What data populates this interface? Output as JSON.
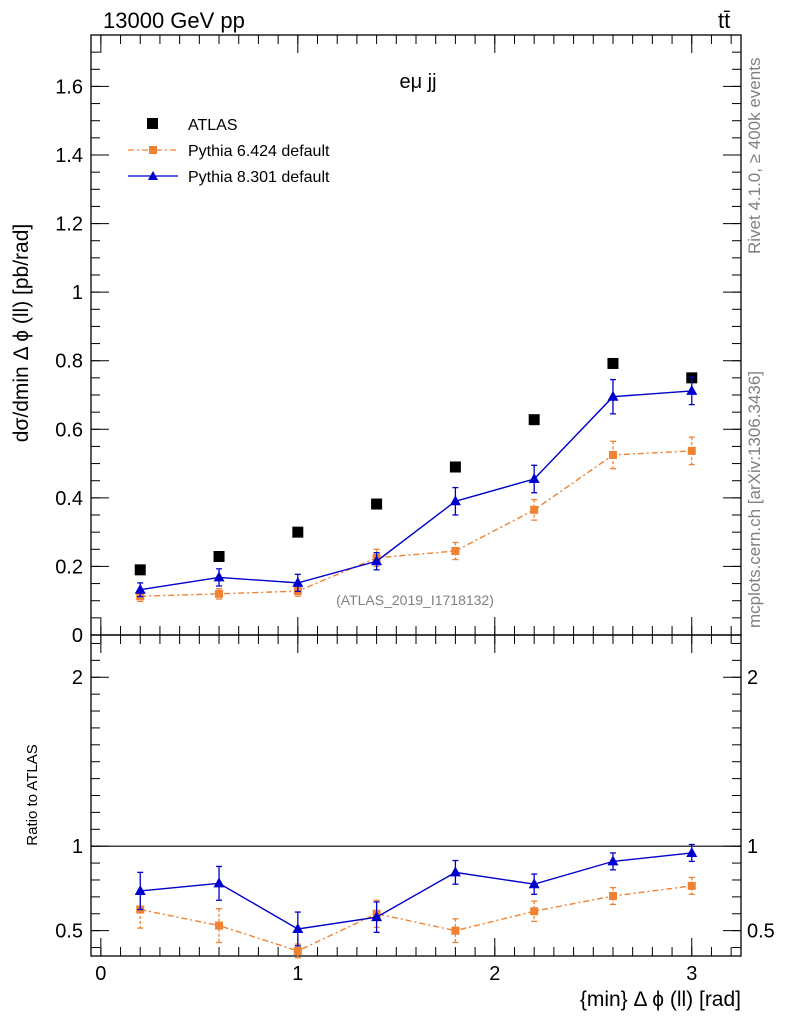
{
  "header": {
    "energy_label": "13000 GeV pp",
    "process_label": "tt̄"
  },
  "side_labels": {
    "rivet": "Rivet 4.1.0, ≥ 400k events",
    "mcplots": "mcplots.cern.ch [arXiv:1306.3436]"
  },
  "chart_data": [
    {
      "panel": "main",
      "type": "scatter",
      "title": "eμ jj",
      "ylabel": "dσ/dmin Δ ϕ (ll) [pb/rad]",
      "xlabel": "",
      "watermark": "(ATLAS_2019_I1718132)",
      "xlim": [
        -0.05,
        3.25
      ],
      "ylim": [
        0,
        1.75
      ],
      "x_ticks": [
        0,
        1,
        2,
        3
      ],
      "y_ticks": [
        0,
        0.2,
        0.4,
        0.6,
        0.8,
        1,
        1.2,
        1.4,
        1.6
      ],
      "y_tick_labels": [
        "0",
        "0.2",
        "0.4",
        "0.6",
        "0.8",
        "1",
        "1.2",
        "1.4",
        "1.6"
      ],
      "x": [
        0.2,
        0.6,
        1.0,
        1.4,
        1.8,
        2.2,
        2.6,
        3.0
      ],
      "series": [
        {
          "name": "ATLAS",
          "color": "#000000",
          "marker": "square",
          "line": "none",
          "values": [
            0.19,
            0.229,
            0.3,
            0.382,
            0.49,
            0.628,
            0.792,
            0.75
          ],
          "errors": [
            0,
            0,
            0,
            0,
            0,
            0,
            0,
            0
          ]
        },
        {
          "name": "Pythia 6.424 default",
          "color": "#f08232",
          "marker": "square-small",
          "line": "dashdot",
          "values": [
            0.113,
            0.12,
            0.128,
            0.225,
            0.245,
            0.365,
            0.525,
            0.537
          ],
          "errors": [
            0.015,
            0.015,
            0.015,
            0.025,
            0.025,
            0.03,
            0.04,
            0.04
          ]
        },
        {
          "name": "Pythia 8.301 default",
          "color": "#0000cc",
          "marker": "triangle",
          "line": "solid",
          "values": [
            0.132,
            0.168,
            0.152,
            0.215,
            0.39,
            0.455,
            0.695,
            0.712
          ],
          "errors": [
            0.02,
            0.025,
            0.025,
            0.025,
            0.04,
            0.04,
            0.05,
            0.04
          ]
        }
      ]
    },
    {
      "panel": "ratio",
      "type": "scatter",
      "ylabel": "Ratio to ATLAS",
      "xlabel": "{min} Δ ϕ (ll) [rad]",
      "xlim": [
        -0.05,
        3.25
      ],
      "ylim": [
        0.35,
        2.25
      ],
      "x_ticks": [
        0,
        1,
        2,
        3
      ],
      "y_ticks": [
        0.5,
        1,
        2
      ],
      "y_tick_labels": [
        "0.5",
        "1",
        "2"
      ],
      "reference_line": 1,
      "x": [
        0.2,
        0.6,
        1.0,
        1.4,
        1.8,
        2.2,
        2.6,
        3.0
      ],
      "series": [
        {
          "name": "Pythia 6.424 default",
          "color": "#f08232",
          "marker": "square-small",
          "line": "dashdot",
          "values": [
            0.625,
            0.53,
            0.38,
            0.6,
            0.5,
            0.615,
            0.705,
            0.765
          ],
          "errors": [
            0.11,
            0.1,
            0.04,
            0.08,
            0.07,
            0.06,
            0.05,
            0.05
          ]
        },
        {
          "name": "Pythia 8.301 default",
          "color": "#0000cc",
          "marker": "triangle",
          "line": "solid",
          "values": [
            0.735,
            0.78,
            0.51,
            0.58,
            0.845,
            0.775,
            0.91,
            0.96
          ],
          "errors": [
            0.11,
            0.1,
            0.1,
            0.09,
            0.07,
            0.06,
            0.05,
            0.05
          ]
        }
      ]
    }
  ]
}
